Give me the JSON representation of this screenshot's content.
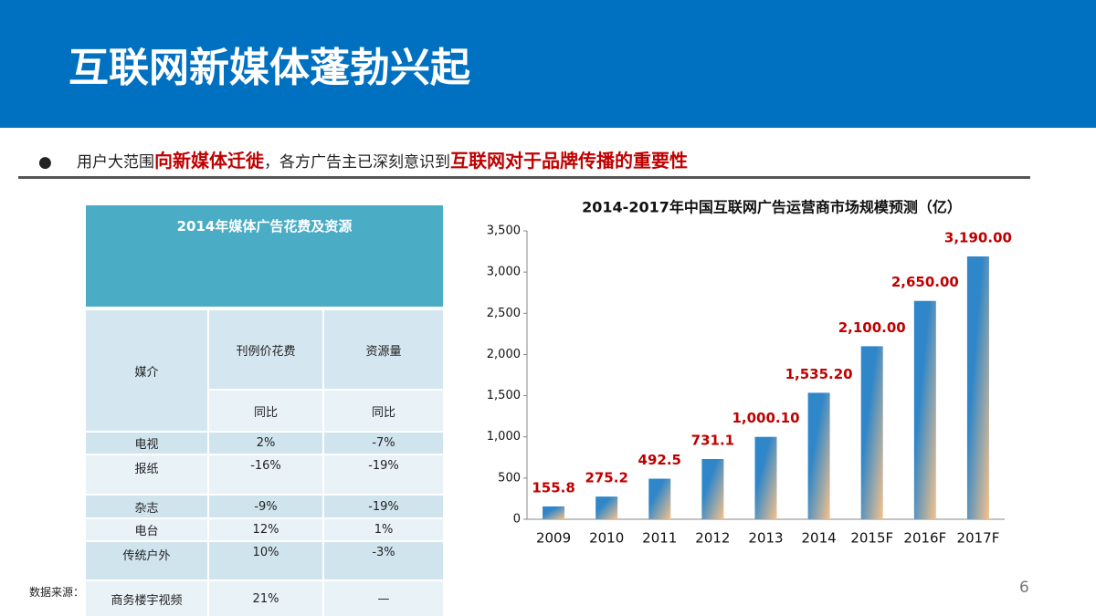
{
  "header": {
    "title": "互联网新媒体蓬勃兴起"
  },
  "bullet": {
    "parts": [
      {
        "text": "用户大范围",
        "emphasis": false
      },
      {
        "text": "向新媒体迁徙",
        "emphasis": true
      },
      {
        "text": "，各方广告主已深刻意识到",
        "emphasis": false
      },
      {
        "text": "互联网对于品牌传播的重要性",
        "emphasis": true
      }
    ]
  },
  "table": {
    "title": "2014年媒体广告花费及资源",
    "header": {
      "medium": "媒介",
      "spend": "刊例价花费",
      "resource": "资源量",
      "spend_sub": "同比",
      "resource_sub": "同比"
    },
    "rows": [
      [
        "电视",
        "2%",
        "-7%"
      ],
      [
        "报纸",
        "-16%",
        "-19%"
      ],
      [
        "杂志",
        "-9%",
        "-19%"
      ],
      [
        "电台",
        "12%",
        "1%"
      ],
      [
        "传统户外",
        "10%",
        "-3%"
      ],
      [
        "商务楼宇视频",
        "21%",
        "—"
      ]
    ]
  },
  "source": "数据来源：",
  "page_number": "6",
  "chart_data": {
    "type": "bar",
    "title": "2014-2017年中国互联网广告运营商市场规模预测（亿）",
    "categories": [
      "2009",
      "2010",
      "2011",
      "2012",
      "2013",
      "2014",
      "2015F",
      "2016F",
      "2017F"
    ],
    "values": [
      155.8,
      275.2,
      492.5,
      731.1,
      1000.1,
      1535.2,
      2100,
      2650,
      3190
    ],
    "value_labels": [
      "155.8",
      "275.2",
      "492.5",
      "731.1",
      "1,000.10",
      "1,535.20",
      "2,100.00",
      "2,650.00",
      "3,190.00"
    ],
    "color": "#2f86c8",
    "ylim": [
      0,
      3500
    ],
    "yticks": [
      0,
      500,
      {
        "value": 1000,
        "label": "1,000"
      },
      {
        "value": 1500,
        "label": "1,500"
      },
      {
        "value": 2000,
        "label": "2,000"
      },
      {
        "value": 2500,
        "label": "2,500"
      },
      {
        "value": 3000,
        "label": "3,000"
      },
      {
        "value": 3500,
        "label": "3,500"
      }
    ]
  }
}
